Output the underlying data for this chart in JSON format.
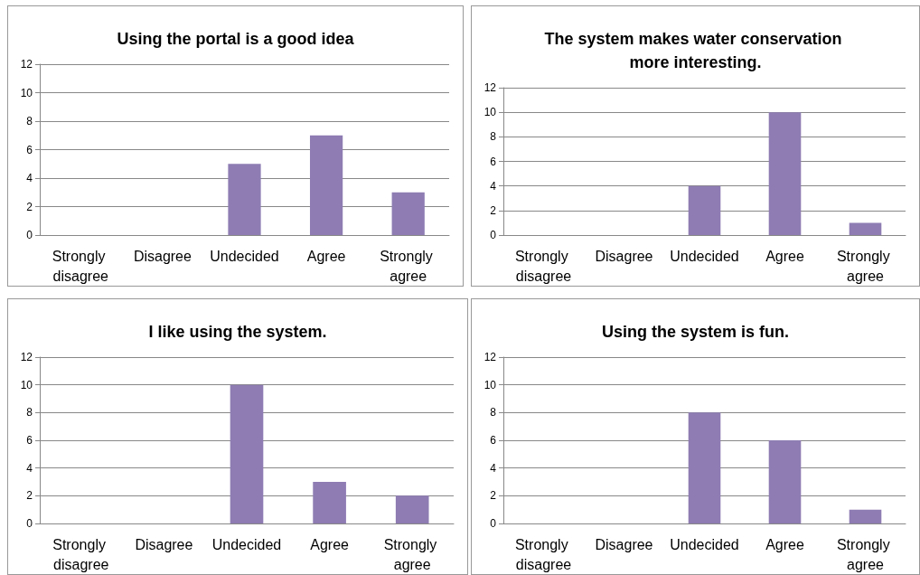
{
  "chart_data": [
    {
      "type": "bar",
      "title": "Using the portal is a good idea",
      "categories": [
        "Strongly disagree",
        "Disagree",
        "Undecided",
        "Agree",
        "Strongly agree"
      ],
      "values": [
        0,
        0,
        5,
        7,
        3
      ],
      "color": "#8e7cb3",
      "ylim": [
        0,
        12
      ],
      "yticks": [
        0,
        2,
        4,
        6,
        8,
        10,
        12
      ],
      "grid": "y"
    },
    {
      "type": "bar",
      "title": "The system makes water conservation more interesting.",
      "categories": [
        "Strongly disagree",
        "Disagree",
        "Undecided",
        "Agree",
        "Strongly agree"
      ],
      "values": [
        0,
        0,
        4,
        10,
        1
      ],
      "color": "#8e7cb3",
      "ylim": [
        0,
        12
      ],
      "yticks": [
        0,
        2,
        4,
        6,
        8,
        10,
        12
      ],
      "grid": "y"
    },
    {
      "type": "bar",
      "title": "I like using the system.",
      "categories": [
        "Strongly disagree",
        "Disagree",
        "Undecided",
        "Agree",
        "Strongly agree"
      ],
      "values": [
        0,
        0,
        10,
        3,
        2
      ],
      "color": "#8e7cb3",
      "ylim": [
        0,
        12
      ],
      "yticks": [
        0,
        2,
        4,
        6,
        8,
        10,
        12
      ],
      "grid": "y"
    },
    {
      "type": "bar",
      "title": "Using the system is fun.",
      "categories": [
        "Strongly disagree",
        "Disagree",
        "Undecided",
        "Agree",
        "Strongly agree"
      ],
      "values": [
        0,
        0,
        8,
        6,
        1
      ],
      "color": "#8e7cb3",
      "ylim": [
        0,
        12
      ],
      "yticks": [
        0,
        2,
        4,
        6,
        8,
        10,
        12
      ],
      "grid": "y"
    }
  ]
}
